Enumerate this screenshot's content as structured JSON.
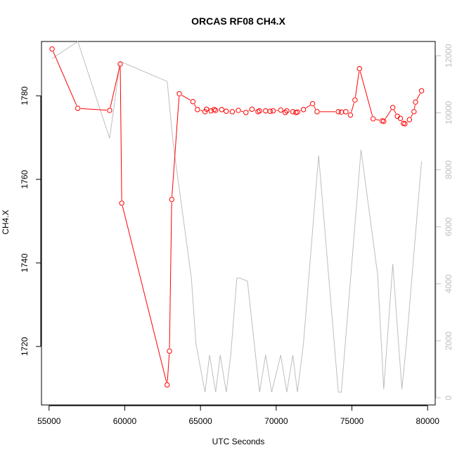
{
  "chart_data": {
    "type": "line",
    "title": "ORCAS RF08 CH4.X",
    "xlabel": "UTC Seconds",
    "ylabel": "CH4.X",
    "xlim": [
      54500,
      80500
    ],
    "ylim": [
      1706,
      1793
    ],
    "y2lim": [
      -250,
      12500
    ],
    "x_ticks": [
      55000,
      60000,
      65000,
      70000,
      75000,
      80000
    ],
    "y_ticks": [
      1720,
      1740,
      1760,
      1780
    ],
    "y2_ticks": [
      0,
      2000,
      4000,
      6000,
      8000,
      10000,
      12000
    ],
    "grid": false,
    "colors": {
      "primary": "#ff0000",
      "secondary": "#bebebe",
      "frame": "#000000"
    },
    "series": [
      {
        "axis": "left",
        "style": "line+circles",
        "x": [
          55200,
          56900,
          59000,
          59700,
          59800,
          62800,
          62950,
          63100,
          63600,
          64500,
          64800,
          65300,
          65400,
          65700,
          65900,
          66000,
          66400,
          66700,
          67100,
          67500,
          68000,
          68400,
          68800,
          68900,
          69300,
          69600,
          69800,
          70300,
          70600,
          70700,
          71100,
          71300,
          71400,
          71800,
          72400,
          72700,
          74100,
          74300,
          74600,
          74900,
          75200,
          75500,
          76400,
          77000,
          77100,
          77700,
          78000,
          78200,
          78400,
          78500,
          78800,
          79100,
          79200,
          79600
        ],
        "y": [
          1791.2,
          1777.0,
          1776.5,
          1787.6,
          1754.3,
          1710.8,
          1718.9,
          1755.2,
          1780.5,
          1778.6,
          1776.7,
          1776.2,
          1776.8,
          1776.4,
          1776.7,
          1776.5,
          1776.7,
          1776.3,
          1776.2,
          1776.5,
          1776.0,
          1776.8,
          1776.2,
          1776.4,
          1776.4,
          1776.3,
          1776.4,
          1776.6,
          1776.0,
          1776.4,
          1776.2,
          1776.0,
          1776.1,
          1776.7,
          1778.1,
          1776.2,
          1776.2,
          1776.1,
          1776.2,
          1775.4,
          1779.0,
          1786.5,
          1774.5,
          1774.0,
          1773.9,
          1777.2,
          1775.1,
          1774.6,
          1773.4,
          1773.3,
          1774.3,
          1776.2,
          1778.5,
          1781.2
        ]
      },
      {
        "axis": "right",
        "style": "line",
        "x": [
          55200,
          56900,
          59000,
          59700,
          62800,
          63200,
          64400,
          64700,
          65300,
          65600,
          66000,
          66300,
          66700,
          67000,
          67400,
          67600,
          68100,
          68900,
          69300,
          69700,
          70300,
          70700,
          71100,
          71400,
          71800,
          72800,
          74100,
          74300,
          75600,
          76700,
          77100,
          77700,
          78300,
          78600,
          79600
        ],
        "y": [
          11900,
          12500,
          9100,
          11800,
          11100,
          8900,
          4200,
          1900,
          200,
          1500,
          200,
          1500,
          200,
          1500,
          4200,
          4200,
          4100,
          200,
          1500,
          200,
          1500,
          200,
          1500,
          200,
          1900,
          8500,
          200,
          200,
          8700,
          4300,
          300,
          4700,
          300,
          1900,
          8300
        ]
      }
    ]
  }
}
